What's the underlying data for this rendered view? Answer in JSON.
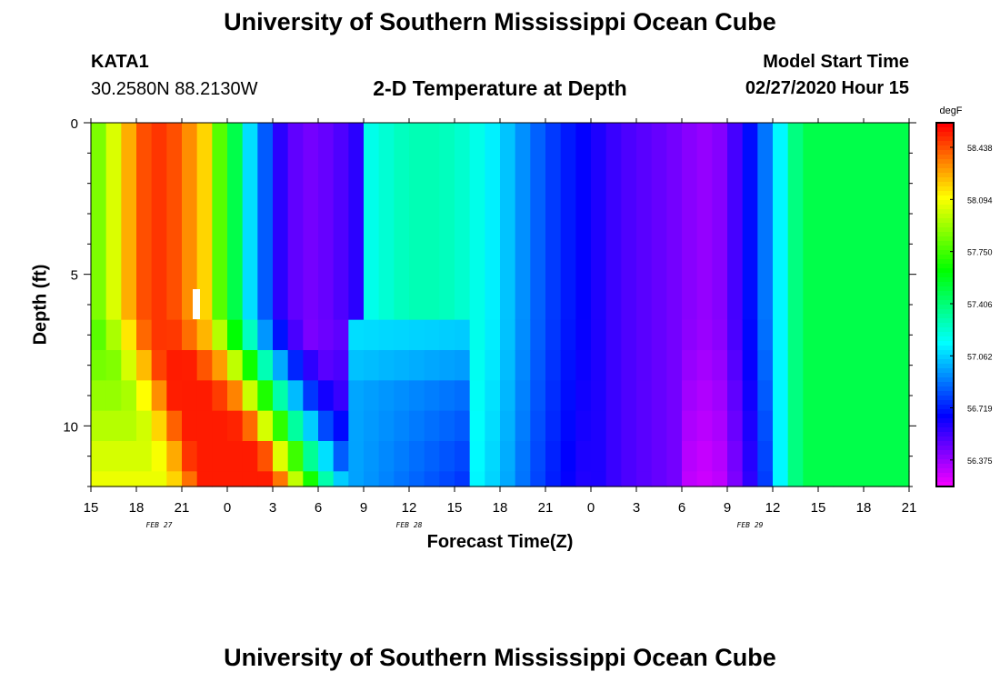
{
  "header": {
    "title": "University of Southern Mississippi Ocean Cube",
    "station_id": "KATA1",
    "station_coords": "30.2580N 88.2130W",
    "plot_title": "2-D Temperature at Depth",
    "model_label": "Model Start Time",
    "model_time": "02/27/2020 Hour 15"
  },
  "footer": {
    "title": "University of Southern Mississippi Ocean Cube"
  },
  "chart_data": {
    "type": "heatmap",
    "title": "2-D Temperature at Depth",
    "xlabel": "Forecast Time(Z)",
    "ylabel": "Depth (ft)",
    "x_range_hours": [
      0,
      54
    ],
    "x_start": "02/27/2020 15Z",
    "x_tick_labels": [
      "15",
      "18",
      "21",
      "0",
      "3",
      "6",
      "9",
      "12",
      "15",
      "18",
      "21",
      "0",
      "3",
      "6",
      "9",
      "12",
      "15",
      "18",
      "21"
    ],
    "date_labels": [
      {
        "label": "FEB 27",
        "hour": 4.5
      },
      {
        "label": "FEB 28",
        "hour": 21
      },
      {
        "label": "FEB 29",
        "hour": 43.5
      }
    ],
    "y_range": [
      0,
      12
    ],
    "y_ticks": [
      0,
      5,
      10
    ],
    "colorbar": {
      "unit": "degF",
      "min": 56.2,
      "max": 58.6,
      "tick_values": [
        58.438,
        58.094,
        57.75,
        57.406,
        57.062,
        56.719,
        56.375
      ],
      "tick_labels": [
        "58.438",
        "58.094",
        "57.750",
        "57.406",
        "57.062",
        "56.719",
        "56.375"
      ]
    },
    "depth_bands_ft": [
      0,
      6.5,
      7.5,
      8.5,
      9.5,
      10.5,
      11.5,
      12
    ],
    "surface_profile": {
      "hours": [
        0,
        1,
        2,
        3,
        4,
        5,
        6,
        7.5,
        8.5,
        9.5,
        10.5,
        11.5,
        12.5,
        14,
        16,
        17.5,
        18.5,
        21,
        23,
        24.5,
        25.5,
        27,
        29,
        31,
        35,
        39,
        40,
        40.5,
        41.3,
        42,
        43,
        44,
        45,
        46,
        47,
        48,
        49.5,
        50.5,
        51.5,
        52.5,
        53.5,
        54
      ],
      "temps": [
        57.8,
        57.95,
        58.15,
        58.4,
        58.5,
        58.5,
        58.4,
        58.2,
        57.8,
        57.5,
        57.1,
        56.85,
        56.6,
        56.45,
        56.5,
        56.6,
        57.2,
        57.3,
        57.3,
        57.25,
        57.2,
        57.1,
        56.9,
        56.75,
        56.55,
        56.45,
        56.4,
        56.4,
        56.4,
        56.5,
        56.6,
        56.8,
        57.0,
        57.3,
        57.5,
        57.5,
        57.5,
        57.5,
        57.5,
        57.5,
        57.5,
        57.5
      ]
    }
  }
}
